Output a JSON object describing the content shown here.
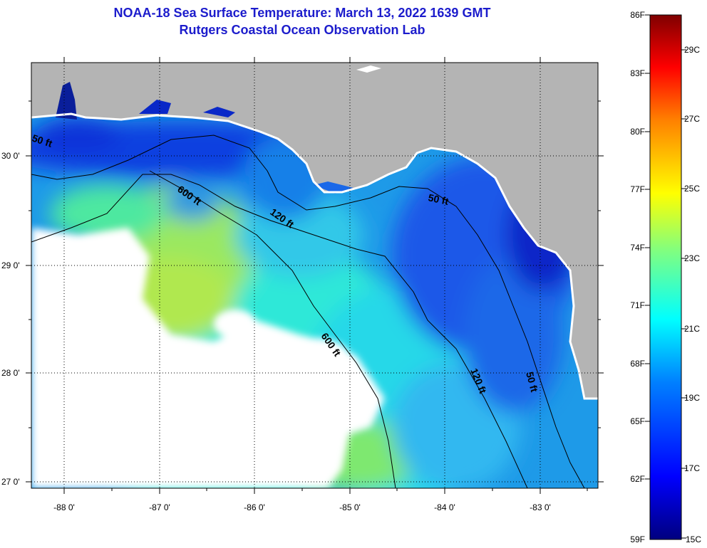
{
  "header": {
    "title": "NOAA-18 Sea Surface Temperature:  March 13, 2022 1639 GMT",
    "subtitle": "Rutgers Coastal Ocean Observation Lab"
  },
  "map": {
    "lon_labels": [
      "-88 0'",
      "-87 0'",
      "-86 0'",
      "-85 0'",
      "-84 0'",
      "-83 0'"
    ],
    "lat_labels": [
      "30 0'",
      "29 0'",
      "28 0'",
      "27 0'"
    ],
    "contour_labels": [
      "50 ft",
      "600 ft",
      "120 ft",
      "50 ft",
      "600 ft",
      "120 ft",
      "50 ft"
    ],
    "colors": {
      "land": "#b4b4b4",
      "cloud": "#ffffff",
      "contour": "#000000"
    }
  },
  "colorbar": {
    "fahrenheit_labels": [
      "86F",
      "83F",
      "80F",
      "77F",
      "74F",
      "71F",
      "68F",
      "65F",
      "62F",
      "59F"
    ],
    "celsius_labels": [
      "29C",
      "27C",
      "25C",
      "23C",
      "21C",
      "19C",
      "17C",
      "15C"
    ]
  }
}
